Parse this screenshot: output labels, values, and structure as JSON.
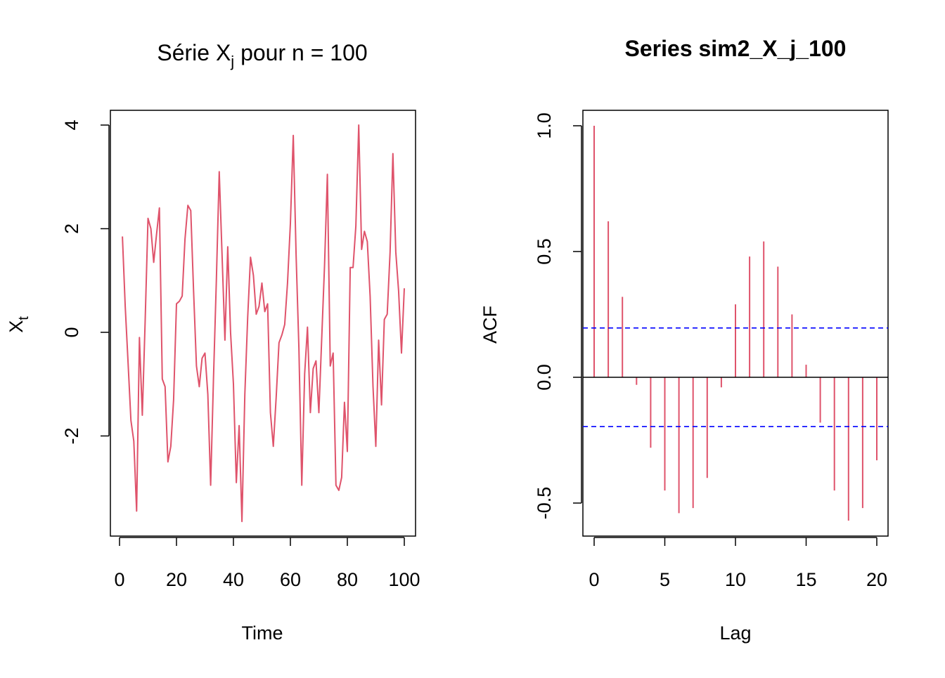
{
  "chart_data": [
    {
      "type": "line",
      "title": "Série X",
      "title_sub": "j",
      "title_suffix": " pour n =  100",
      "xlabel": "Time",
      "ylabel": "X",
      "ylabel_sub": "t",
      "xlim": [
        0,
        100
      ],
      "ylim": [
        -3.9,
        4.3
      ],
      "xticks": [
        "0",
        "20",
        "40",
        "60",
        "80",
        "100"
      ],
      "yticks": [
        "-2",
        "0",
        "2",
        "4"
      ],
      "series": [
        {
          "color": "#DF536B",
          "x": [
            1,
            2,
            3,
            4,
            5,
            6,
            7,
            8,
            9,
            10,
            11,
            12,
            13,
            14,
            15,
            16,
            17,
            18,
            19,
            20,
            21,
            22,
            23,
            24,
            25,
            26,
            27,
            28,
            29,
            30,
            31,
            32,
            33,
            34,
            35,
            36,
            37,
            38,
            39,
            40,
            41,
            42,
            43,
            44,
            45,
            46,
            47,
            48,
            49,
            50,
            51,
            52,
            53,
            54,
            55,
            56,
            57,
            58,
            59,
            60,
            61,
            62,
            63,
            64,
            65,
            66,
            67,
            68,
            69,
            70,
            71,
            72,
            73,
            74,
            75,
            76,
            77,
            78,
            79,
            80,
            81,
            82,
            83,
            84,
            85,
            86,
            87,
            88,
            89,
            90,
            91,
            92,
            93,
            94,
            95,
            96,
            97,
            98,
            99,
            100
          ],
          "y": [
            1.85,
            0.5,
            -0.6,
            -1.7,
            -2.1,
            -3.45,
            -0.1,
            -1.6,
            0.2,
            2.2,
            2.0,
            1.35,
            1.9,
            2.4,
            -0.9,
            -1.05,
            -2.5,
            -2.2,
            -1.3,
            0.55,
            0.6,
            0.7,
            1.8,
            2.45,
            2.35,
            0.8,
            -0.65,
            -1.05,
            -0.5,
            -0.4,
            -1.2,
            -2.95,
            -0.9,
            1.0,
            3.1,
            1.5,
            -0.15,
            1.65,
            0.0,
            -1.0,
            -2.9,
            -1.8,
            -3.65,
            -1.2,
            0.3,
            1.45,
            1.1,
            0.35,
            0.5,
            0.95,
            0.4,
            0.55,
            -1.55,
            -2.2,
            -1.25,
            -0.2,
            -0.05,
            0.15,
            0.95,
            2.1,
            3.8,
            1.5,
            -0.3,
            -2.95,
            -0.8,
            0.1,
            -1.55,
            -0.7,
            -0.55,
            -1.55,
            -0.1,
            1.3,
            3.05,
            -0.65,
            -0.4,
            -2.95,
            -3.05,
            -2.8,
            -1.35,
            -2.3,
            1.25,
            1.25,
            2.05,
            4.0,
            1.6,
            1.95,
            1.75,
            0.7,
            -1.05,
            -2.2,
            -0.15,
            -1.4,
            0.25,
            0.35,
            1.55,
            3.45,
            1.55,
            0.8,
            -0.4,
            0.85
          ]
        }
      ]
    },
    {
      "type": "bar",
      "title": "Series  sim2_X_j_100",
      "xlabel": "Lag",
      "ylabel": "ACF",
      "xlim": [
        0,
        20
      ],
      "ylim": [
        -0.63,
        1.06
      ],
      "xticks": [
        "0",
        "5",
        "10",
        "15",
        "20"
      ],
      "yticks": [
        "-0.5",
        "0.0",
        "0.5",
        "1.0"
      ],
      "x": [
        0,
        1,
        2,
        3,
        4,
        5,
        6,
        7,
        8,
        9,
        10,
        11,
        12,
        13,
        14,
        15,
        16,
        17,
        18,
        19,
        20
      ],
      "values": [
        1.0,
        0.62,
        0.32,
        -0.03,
        -0.28,
        -0.45,
        -0.54,
        -0.52,
        -0.4,
        -0.04,
        0.29,
        0.48,
        0.54,
        0.44,
        0.25,
        0.05,
        -0.18,
        -0.45,
        -0.57,
        -0.52,
        -0.33
      ],
      "bar_color": "#DF536B",
      "confidence_bounds": [
        0.196,
        -0.196
      ],
      "confidence_color": "#0000FF",
      "zero_line": true
    }
  ]
}
